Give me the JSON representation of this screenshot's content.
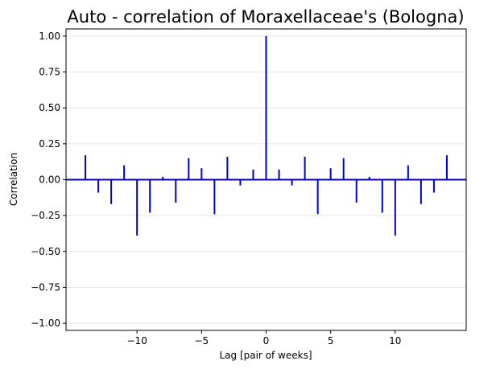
{
  "chart_data": {
    "type": "bar",
    "title": "Auto - correlation of Moraxellaceae's (Bologna)",
    "xlabel": "Lag [pair of weeks]",
    "ylabel": "Correlation",
    "xlim": [
      -15.5,
      15.5
    ],
    "ylim": [
      -1.05,
      1.05
    ],
    "x_ticks": [
      -10,
      -5,
      0,
      5,
      10
    ],
    "x_tick_labels": [
      "−10",
      "−5",
      "0",
      "5",
      "10"
    ],
    "y_ticks": [
      -1.0,
      -0.75,
      -0.5,
      -0.25,
      0.0,
      0.25,
      0.5,
      0.75,
      1.0
    ],
    "y_tick_labels": [
      "−1.00",
      "−0.75",
      "−0.50",
      "−0.25",
      "0.00",
      "0.25",
      "0.50",
      "0.75",
      "1.00"
    ],
    "grid": "horizontal",
    "legend": "none",
    "colors": {
      "stem": "#0000cc",
      "baseline": "#0000cc",
      "grid": "#e6e6e6"
    },
    "x": [
      -14,
      -13,
      -12,
      -11,
      -10,
      -9,
      -8,
      -7,
      -6,
      -5,
      -4,
      -3,
      -2,
      -1,
      0,
      1,
      2,
      3,
      4,
      5,
      6,
      7,
      8,
      9,
      10,
      11,
      12,
      13,
      14
    ],
    "values": [
      0.17,
      -0.09,
      -0.17,
      0.1,
      -0.39,
      -0.23,
      0.02,
      -0.16,
      0.15,
      0.08,
      -0.24,
      0.16,
      -0.04,
      0.07,
      1.0,
      0.07,
      -0.04,
      0.16,
      -0.24,
      0.08,
      0.15,
      -0.16,
      0.02,
      -0.23,
      -0.39,
      0.1,
      -0.17,
      -0.09,
      0.17
    ]
  }
}
